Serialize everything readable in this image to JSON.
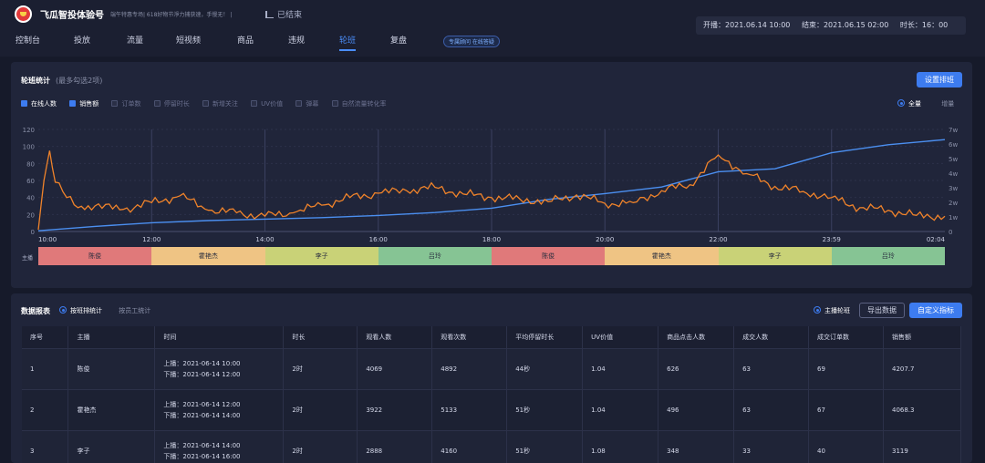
{
  "app": {
    "brand": "飞瓜智投体验号",
    "notice": "端午特惠专场| 618好物节淨力捕获速，手慢无！ |",
    "status": "已结束",
    "start": "开播：2021.06.14 10:00",
    "end": "结束：2021.06.15 02:00",
    "duration": "时长：16：00"
  },
  "nav": {
    "items": [
      "控制台",
      "投放",
      "流量",
      "短视频",
      "商品",
      "违规",
      "轮班",
      "复盘"
    ],
    "active_index": 6,
    "ai_tag": "专属顾问 在线答疑"
  },
  "chart_panel": {
    "title": "轮班统计",
    "subtitle": "(最多勾选2项)",
    "settings_button": "设置排班",
    "metrics": [
      {
        "label": "在线人数",
        "checked": true
      },
      {
        "label": "销售额",
        "checked": true
      },
      {
        "label": "订单数",
        "checked": false
      },
      {
        "label": "停留时长",
        "checked": false
      },
      {
        "label": "新增关注",
        "checked": false
      },
      {
        "label": "UV价值",
        "checked": false
      },
      {
        "label": "弹幕",
        "checked": false
      },
      {
        "label": "自然流量转化率",
        "checked": false
      }
    ],
    "mode_all": "全量",
    "mode_incr": "增量",
    "anchor_row_label": "主播",
    "anchors": [
      "陈俊",
      "霍艳杰",
      "李子",
      "吕玲",
      "陈俊",
      "霍艳杰",
      "李子",
      "吕玲"
    ],
    "anchor_colors": [
      "#e0797a",
      "#efc484",
      "#c9d277",
      "#86c494",
      "#e0797a",
      "#efc484",
      "#c9d277",
      "#86c494"
    ]
  },
  "chart_data": {
    "type": "line",
    "x_ticks": [
      "10:00",
      "12:00",
      "14:00",
      "16:00",
      "18:00",
      "20:00",
      "22:00",
      "23:59",
      "02:04"
    ],
    "left_axis_ticks": [
      "0",
      "20",
      "40",
      "60",
      "80",
      "100",
      "120"
    ],
    "right_axis_ticks": [
      "0",
      "1w",
      "2w",
      "3w",
      "4w",
      "5w",
      "6w",
      "7w"
    ],
    "ylim_left": [
      0,
      120
    ],
    "ylim_right": [
      0,
      7
    ],
    "series": [
      {
        "name": "在线人数",
        "color": "#f0832a",
        "x": [
          0,
          0.1,
          0.2,
          0.3,
          0.5,
          0.7,
          1,
          1.5,
          2,
          2.5,
          3,
          3.5,
          4,
          4.5,
          5,
          5.5,
          6,
          6.5,
          7,
          7.5,
          8,
          8.5,
          9,
          9.5,
          10,
          10.5,
          11,
          11.5,
          12,
          12.5,
          13,
          13.5,
          14,
          14.5,
          15,
          15.5,
          16
        ],
        "y": [
          2,
          60,
          95,
          58,
          40,
          28,
          30,
          26,
          34,
          42,
          25,
          22,
          18,
          22,
          31,
          40,
          45,
          48,
          52,
          44,
          40,
          38,
          35,
          43,
          33,
          34,
          48,
          55,
          90,
          68,
          53,
          47,
          40,
          28,
          25,
          19,
          18
        ]
      },
      {
        "name": "销售额",
        "color": "#4b8ff0",
        "x": [
          0,
          1,
          2,
          3,
          4,
          5,
          6,
          7,
          8,
          9,
          10,
          11,
          12,
          13,
          14,
          15,
          16
        ],
        "y": [
          0.05,
          0.35,
          0.6,
          0.75,
          0.85,
          0.95,
          1.1,
          1.3,
          1.6,
          2.2,
          2.6,
          3.05,
          4.1,
          4.3,
          5.4,
          5.95,
          6.3
        ]
      }
    ]
  },
  "table_panel": {
    "title": "数据报表",
    "mode_anchor": "按班排统计",
    "mode_day": "按员工统计",
    "anchor_rotation": "主播轮班",
    "export_button": "导出数据",
    "custom_button": "自定义指标",
    "columns": [
      "序号",
      "主播",
      "时间",
      "时长",
      "观看人数",
      "观看次数",
      "平均停留时长",
      "UV价值",
      "商品点击人数",
      "成交人数",
      "成交订单数",
      "销售额"
    ],
    "rows": [
      {
        "no": "1",
        "anchor": "陈俊",
        "t1": "上播：2021-06-14 10:00",
        "t2": "下播：2021-06-14 12:00",
        "dur": "2时",
        "viewers": "4069",
        "views": "4892",
        "stay": "44秒",
        "uv": "1.04",
        "clicks": "626",
        "buyers": "63",
        "orders": "69",
        "sales": "4207.7"
      },
      {
        "no": "2",
        "anchor": "霍艳杰",
        "t1": "上播：2021-06-14 12:00",
        "t2": "下播：2021-06-14 14:00",
        "dur": "2时",
        "viewers": "3922",
        "views": "5133",
        "stay": "51秒",
        "uv": "1.04",
        "clicks": "496",
        "buyers": "63",
        "orders": "67",
        "sales": "4068.3"
      },
      {
        "no": "3",
        "anchor": "李子",
        "t1": "上播：2021-06-14 14:00",
        "t2": "下播：2021-06-14 16:00",
        "dur": "2时",
        "viewers": "2888",
        "views": "4160",
        "stay": "51秒",
        "uv": "1.08",
        "clicks": "348",
        "buyers": "33",
        "orders": "40",
        "sales": "3119"
      }
    ]
  }
}
